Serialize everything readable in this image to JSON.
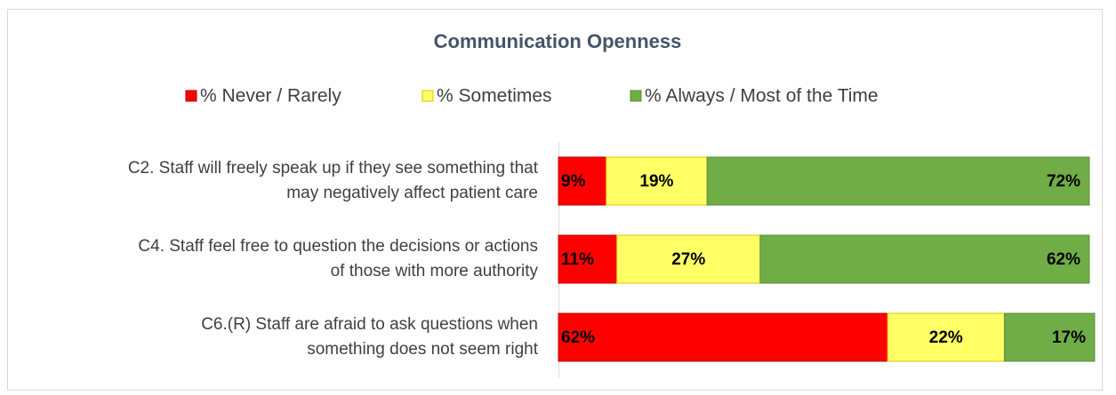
{
  "chart_data": {
    "type": "stacked-bar-horizontal",
    "title": "Communication Openness",
    "categories": [
      [
        "C2. Staff will freely speak up if they see something that",
        "may negatively affect patient care"
      ],
      [
        "C4. Staff feel free to question the decisions or actions",
        "of those with more authority"
      ],
      [
        "C6.(R) Staff are afraid to ask questions when",
        "something does not seem right"
      ]
    ],
    "series": [
      {
        "name": "% Never / Rarely",
        "color": "#ff0000",
        "values": [
          9,
          11,
          62
        ],
        "value_labels": [
          "9%",
          "11%",
          "62%"
        ]
      },
      {
        "name": "% Sometimes",
        "color": "#ffff66",
        "values": [
          19,
          27,
          22
        ],
        "value_labels": [
          "19%",
          "27%",
          "22%"
        ]
      },
      {
        "name": "% Always / Most of the Time",
        "color": "#70ad47",
        "values": [
          72,
          62,
          17
        ],
        "value_labels": [
          "72%",
          "62%",
          "17%"
        ]
      }
    ],
    "xlim": [
      0,
      100
    ],
    "legend": "top"
  }
}
